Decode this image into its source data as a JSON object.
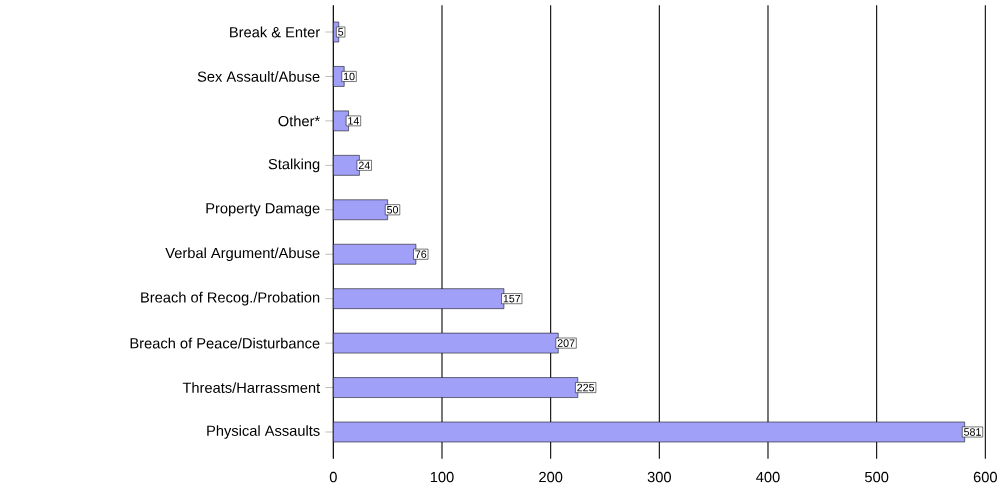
{
  "chart_data": {
    "type": "bar",
    "orientation": "horizontal",
    "categories": [
      "Break & Enter",
      "Sex Assault/Abuse",
      "Other*",
      "Stalking",
      "Property Damage",
      "Verbal Argument/Abuse",
      "Breach of Recog./Probation",
      "Breach of Peace/Disturbance",
      "Threats/Harrassment",
      "Physical Assaults"
    ],
    "values": [
      5,
      10,
      14,
      24,
      50,
      76,
      157,
      207,
      225,
      581
    ],
    "color": "#a0a0f8",
    "xlim": [
      0,
      600
    ],
    "xticks": [
      0,
      100,
      200,
      300,
      400,
      500,
      600
    ],
    "grid": "x",
    "data_labels": true
  }
}
